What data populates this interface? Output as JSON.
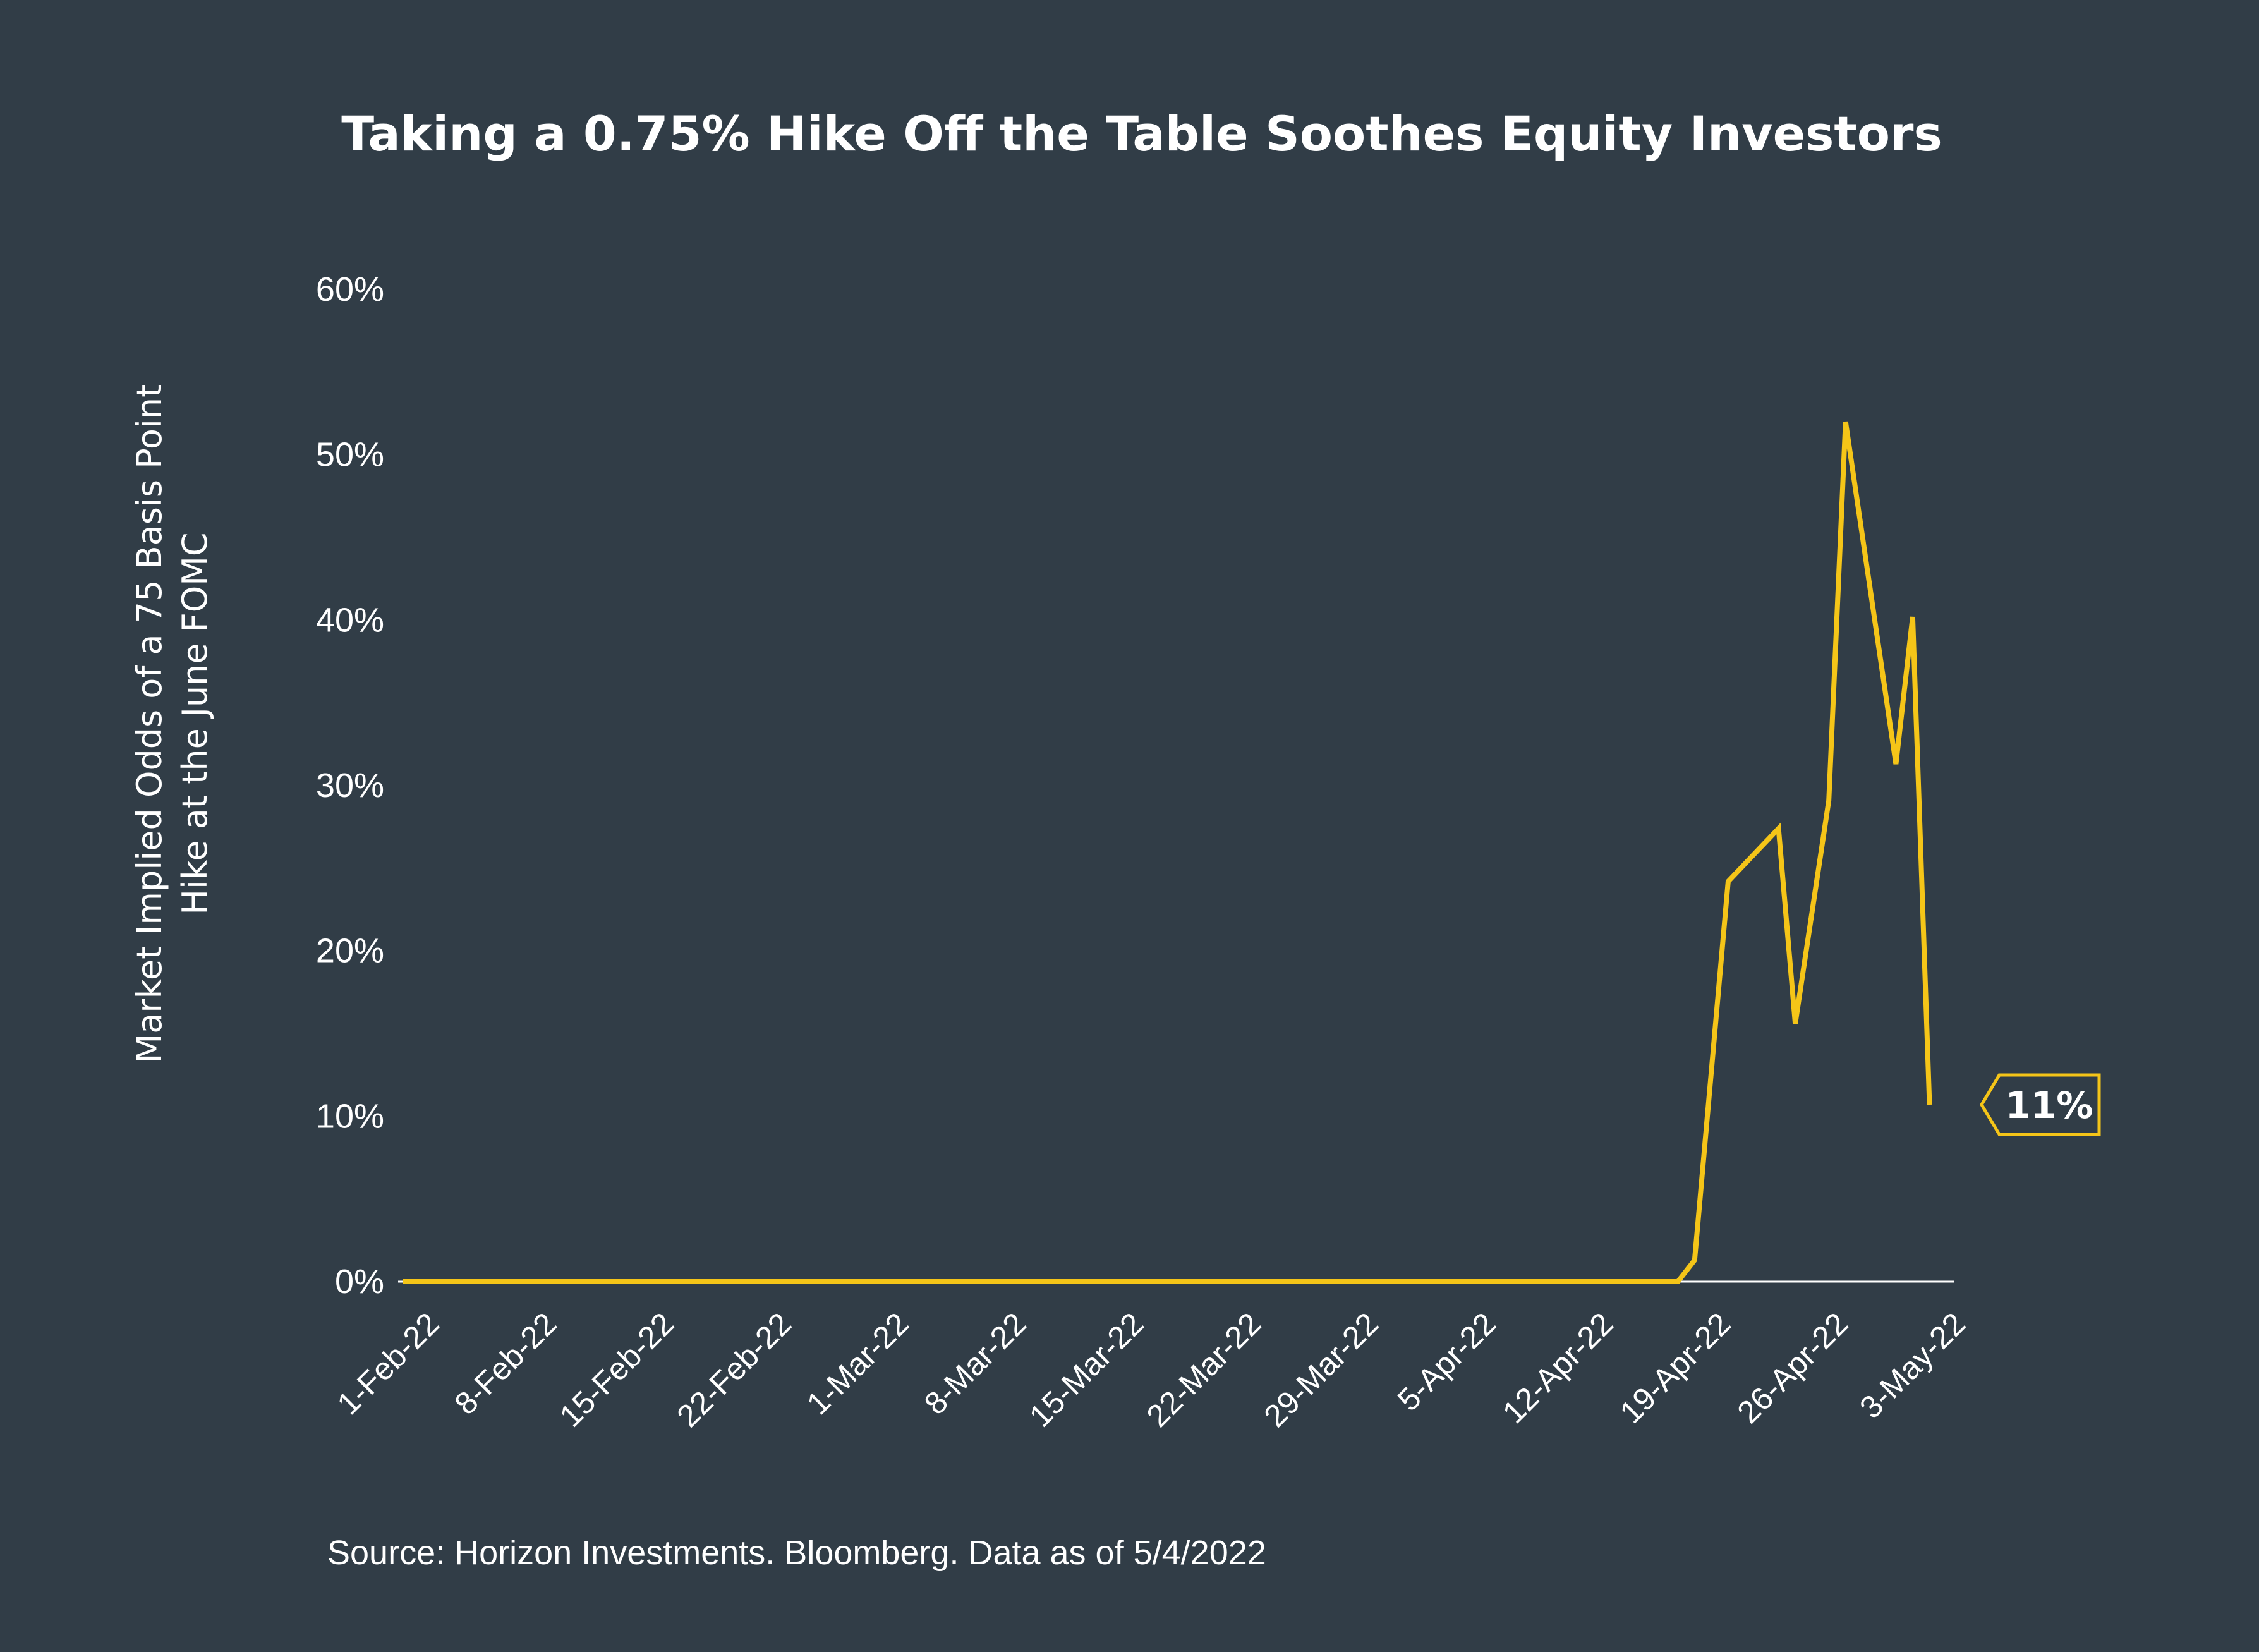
{
  "chart_data": {
    "type": "line",
    "title": "Taking a 0.75% Hike Off the Table Soothes Equity Investors",
    "ylabel": [
      "Market Implied Odds of a 75 Basis Point",
      "Hike at the June FOMC"
    ],
    "xlabel": "",
    "source": "Source: Horizon Investments. Bloomberg. Data as of 5/4/2022",
    "ylim": [
      0,
      60
    ],
    "y_ticks": [
      {
        "value": 0,
        "label": "0%"
      },
      {
        "value": 10,
        "label": "10%"
      },
      {
        "value": 20,
        "label": "20%"
      },
      {
        "value": 30,
        "label": "30%"
      },
      {
        "value": 40,
        "label": "40%"
      },
      {
        "value": 50,
        "label": "50%"
      },
      {
        "value": 60,
        "label": "60%"
      }
    ],
    "xlim": [
      "2022-02-01",
      "2022-05-04"
    ],
    "x_ticks": [
      {
        "date": "2022-02-01",
        "label": "1-Feb-22"
      },
      {
        "date": "2022-02-08",
        "label": "8-Feb-22"
      },
      {
        "date": "2022-02-15",
        "label": "15-Feb-22"
      },
      {
        "date": "2022-02-22",
        "label": "22-Feb-22"
      },
      {
        "date": "2022-03-01",
        "label": "1-Mar-22"
      },
      {
        "date": "2022-03-08",
        "label": "8-Mar-22"
      },
      {
        "date": "2022-03-15",
        "label": "15-Mar-22"
      },
      {
        "date": "2022-03-22",
        "label": "22-Mar-22"
      },
      {
        "date": "2022-03-29",
        "label": "29-Mar-22"
      },
      {
        "date": "2022-04-05",
        "label": "5-Apr-22"
      },
      {
        "date": "2022-04-12",
        "label": "12-Apr-22"
      },
      {
        "date": "2022-04-19",
        "label": "19-Apr-22"
      },
      {
        "date": "2022-04-26",
        "label": "26-Apr-22"
      },
      {
        "date": "2022-05-03",
        "label": "3-May-22"
      }
    ],
    "series": [
      {
        "color": "#f5c518",
        "points": [
          {
            "x": "2022-02-01",
            "y": 0
          },
          {
            "x": "2022-04-18",
            "y": 0
          },
          {
            "x": "2022-04-19",
            "y": 1.3
          },
          {
            "x": "2022-04-21",
            "y": 24.2
          },
          {
            "x": "2022-04-24",
            "y": 27.4
          },
          {
            "x": "2022-04-25",
            "y": 15.6
          },
          {
            "x": "2022-04-27",
            "y": 29.1
          },
          {
            "x": "2022-04-28",
            "y": 52.0
          },
          {
            "x": "2022-05-01",
            "y": 31.3
          },
          {
            "x": "2022-05-02",
            "y": 40.2
          },
          {
            "x": "2022-05-03",
            "y": 10.7
          }
        ]
      }
    ],
    "callout": {
      "label": "11%",
      "value": 10.7
    },
    "grid": false,
    "legend": "none"
  },
  "colors": {
    "background": "#313d47",
    "line": "#f5c518",
    "text": "#ffffff",
    "axis": "#ffffff"
  }
}
